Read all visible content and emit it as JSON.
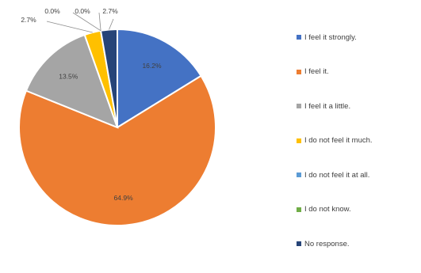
{
  "chart_data": {
    "type": "pie",
    "title": "",
    "legend_position": "right",
    "slices": [
      {
        "label": "I feel it strongly.",
        "value": 16.2,
        "value_label": "16.2%",
        "color": "#4472C4"
      },
      {
        "label": "I feel it.",
        "value": 64.9,
        "value_label": "64.9%",
        "color": "#ED7D31"
      },
      {
        "label": "I feel it a little.",
        "value": 13.5,
        "value_label": "13.5%",
        "color": "#A5A5A5"
      },
      {
        "label": "I do not feel it much.",
        "value": 2.7,
        "value_label": "2.7%",
        "color": "#FFC000"
      },
      {
        "label": "I do not feel it at all.",
        "value": 0.0,
        "value_label": "0.0%",
        "color": "#5B9BD5"
      },
      {
        "label": "I do not know.",
        "value": 0.0,
        "value_label": "0.0%",
        "color": "#70AD47"
      },
      {
        "label": "No response.",
        "value": 2.7,
        "value_label": "2.7%",
        "color": "#264478"
      }
    ]
  }
}
